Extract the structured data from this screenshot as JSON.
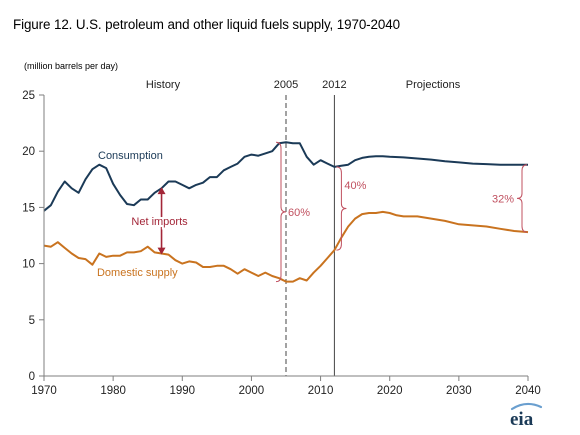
{
  "figure": {
    "title": "Figure 12. U.S. petroleum and other liquid fuels supply, 1970-2040",
    "units": "(million barrels per day)",
    "logo_text": "eia"
  },
  "colors": {
    "consumption": "#1b3a57",
    "domestic": "#c9731f",
    "net_imports": "#a32638",
    "pct_bracket": "#c0505f",
    "axis": "#7f7f7f"
  },
  "chart_data": {
    "type": "line",
    "title": "Figure 12. U.S. petroleum and other liquid fuels supply, 1970-2040",
    "xlabel": "",
    "ylabel": "(million barrels per day)",
    "xlim": [
      1970,
      2040
    ],
    "ylim": [
      0,
      25
    ],
    "x_ticks": [
      1970,
      1980,
      1990,
      2000,
      2010,
      2020,
      2030,
      2040
    ],
    "y_ticks": [
      0,
      5,
      10,
      15,
      20,
      25
    ],
    "grid": false,
    "legend": "none (series labeled directly on chart)",
    "series": [
      {
        "name": "Consumption",
        "color": "#1b3a57",
        "points": [
          [
            1970,
            14.7
          ],
          [
            1971,
            15.2
          ],
          [
            1972,
            16.4
          ],
          [
            1973,
            17.3
          ],
          [
            1974,
            16.7
          ],
          [
            1975,
            16.3
          ],
          [
            1976,
            17.5
          ],
          [
            1977,
            18.4
          ],
          [
            1978,
            18.8
          ],
          [
            1979,
            18.5
          ],
          [
            1980,
            17.1
          ],
          [
            1981,
            16.1
          ],
          [
            1982,
            15.3
          ],
          [
            1983,
            15.2
          ],
          [
            1984,
            15.7
          ],
          [
            1985,
            15.7
          ],
          [
            1986,
            16.3
          ],
          [
            1987,
            16.7
          ],
          [
            1988,
            17.3
          ],
          [
            1989,
            17.3
          ],
          [
            1990,
            17.0
          ],
          [
            1991,
            16.7
          ],
          [
            1992,
            17.0
          ],
          [
            1993,
            17.2
          ],
          [
            1994,
            17.7
          ],
          [
            1995,
            17.7
          ],
          [
            1996,
            18.3
          ],
          [
            1997,
            18.6
          ],
          [
            1998,
            18.9
          ],
          [
            1999,
            19.5
          ],
          [
            2000,
            19.7
          ],
          [
            2001,
            19.6
          ],
          [
            2002,
            19.8
          ],
          [
            2003,
            20.0
          ],
          [
            2004,
            20.7
          ],
          [
            2005,
            20.8
          ],
          [
            2006,
            20.7
          ],
          [
            2007,
            20.7
          ],
          [
            2008,
            19.5
          ],
          [
            2009,
            18.8
          ],
          [
            2010,
            19.2
          ],
          [
            2011,
            18.9
          ],
          [
            2012,
            18.6
          ],
          [
            2013,
            18.7
          ],
          [
            2014,
            18.8
          ],
          [
            2015,
            19.2
          ],
          [
            2016,
            19.4
          ],
          [
            2017,
            19.5
          ],
          [
            2018,
            19.55
          ],
          [
            2019,
            19.55
          ],
          [
            2020,
            19.5
          ],
          [
            2022,
            19.45
          ],
          [
            2024,
            19.35
          ],
          [
            2026,
            19.25
          ],
          [
            2028,
            19.1
          ],
          [
            2030,
            19.0
          ],
          [
            2032,
            18.9
          ],
          [
            2034,
            18.85
          ],
          [
            2036,
            18.8
          ],
          [
            2038,
            18.8
          ],
          [
            2040,
            18.8
          ]
        ]
      },
      {
        "name": "Domestic supply",
        "color": "#c9731f",
        "points": [
          [
            1970,
            11.6
          ],
          [
            1971,
            11.5
          ],
          [
            1972,
            11.9
          ],
          [
            1973,
            11.4
          ],
          [
            1974,
            10.9
          ],
          [
            1975,
            10.5
          ],
          [
            1976,
            10.4
          ],
          [
            1977,
            9.9
          ],
          [
            1978,
            10.9
          ],
          [
            1979,
            10.6
          ],
          [
            1980,
            10.7
          ],
          [
            1981,
            10.7
          ],
          [
            1982,
            11.0
          ],
          [
            1983,
            11.0
          ],
          [
            1984,
            11.1
          ],
          [
            1985,
            11.5
          ],
          [
            1986,
            11.0
          ],
          [
            1987,
            10.9
          ],
          [
            1988,
            10.8
          ],
          [
            1989,
            10.3
          ],
          [
            1990,
            10.0
          ],
          [
            1991,
            10.2
          ],
          [
            1992,
            10.1
          ],
          [
            1993,
            9.7
          ],
          [
            1994,
            9.7
          ],
          [
            1995,
            9.8
          ],
          [
            1996,
            9.8
          ],
          [
            1997,
            9.5
          ],
          [
            1998,
            9.1
          ],
          [
            1999,
            9.5
          ],
          [
            2000,
            9.2
          ],
          [
            2001,
            8.9
          ],
          [
            2002,
            9.2
          ],
          [
            2003,
            8.9
          ],
          [
            2004,
            8.7
          ],
          [
            2005,
            8.4
          ],
          [
            2006,
            8.4
          ],
          [
            2007,
            8.7
          ],
          [
            2008,
            8.5
          ],
          [
            2009,
            9.2
          ],
          [
            2010,
            9.8
          ],
          [
            2011,
            10.5
          ],
          [
            2012,
            11.2
          ],
          [
            2013,
            12.3
          ],
          [
            2014,
            13.3
          ],
          [
            2015,
            14.0
          ],
          [
            2016,
            14.4
          ],
          [
            2017,
            14.5
          ],
          [
            2018,
            14.5
          ],
          [
            2019,
            14.6
          ],
          [
            2020,
            14.5
          ],
          [
            2021,
            14.3
          ],
          [
            2022,
            14.2
          ],
          [
            2024,
            14.2
          ],
          [
            2026,
            14.0
          ],
          [
            2028,
            13.8
          ],
          [
            2030,
            13.5
          ],
          [
            2032,
            13.4
          ],
          [
            2034,
            13.3
          ],
          [
            2036,
            13.1
          ],
          [
            2038,
            12.9
          ],
          [
            2040,
            12.8
          ]
        ]
      }
    ],
    "annotations": {
      "history": "History",
      "projections": "Projections",
      "ref_lines": [
        {
          "x": 2005,
          "label": "2005",
          "style": "dashed"
        },
        {
          "x": 2012,
          "label": "2012",
          "style": "solid"
        }
      ],
      "net_imports": {
        "label": "Net imports",
        "x": 1987,
        "from": 16.8,
        "to": 10.8
      },
      "brackets": [
        {
          "label": "60%",
          "x": 2005,
          "y_top": 20.8,
          "y_bottom": 8.4
        },
        {
          "label": "40%",
          "x": 2012,
          "y_top": 18.6,
          "y_bottom": 11.2
        },
        {
          "label": "32%",
          "x": 2040,
          "y_top": 18.8,
          "y_bottom": 12.8
        }
      ],
      "series_labels": {
        "consumption": {
          "label": "Consumption",
          "x": 1982.5,
          "y": 19.3
        },
        "domestic": {
          "label": "Domestic supply",
          "x": 1983.5,
          "y": 8.9
        }
      }
    }
  }
}
